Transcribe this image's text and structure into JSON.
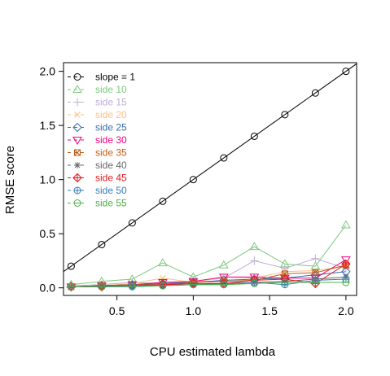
{
  "chart_data": {
    "type": "line",
    "xlabel": "CPU estimated lambda",
    "ylabel": "RMSE score",
    "xlim": [
      0.15,
      2.07
    ],
    "ylim": [
      -0.07,
      2.08
    ],
    "xticks": [
      "0.5",
      "1.0",
      "1.5",
      "2.0"
    ],
    "xtick_values": [
      0.5,
      1.0,
      1.5,
      2.0
    ],
    "yticks": [
      "0.0",
      "0.5",
      "1.0",
      "1.5",
      "2.0"
    ],
    "ytick_values": [
      0.0,
      0.5,
      1.0,
      1.5,
      2.0
    ],
    "grid": false,
    "legend_position": "top-left",
    "x": [
      0.2,
      0.4,
      0.6,
      0.8,
      1.0,
      1.2,
      1.4,
      1.6,
      1.8,
      2.0
    ],
    "series": [
      {
        "name": "slope = 1",
        "color": "#000000",
        "marker": "circle",
        "line": "fullspan",
        "values": [
          0.2,
          0.4,
          0.6,
          0.8,
          1.0,
          1.2,
          1.4,
          1.6,
          1.8,
          2.0
        ]
      },
      {
        "name": "side 10",
        "color": "#7fc97f",
        "marker": "triangle-up",
        "values": [
          0.03,
          0.06,
          0.08,
          0.23,
          0.1,
          0.21,
          0.38,
          0.22,
          0.2,
          0.58
        ]
      },
      {
        "name": "side 15",
        "color": "#beaed4",
        "marker": "plus",
        "values": [
          0.02,
          0.03,
          0.05,
          0.04,
          0.06,
          0.09,
          0.25,
          0.18,
          0.27,
          0.18
        ]
      },
      {
        "name": "side 20",
        "color": "#fdc086",
        "marker": "cross",
        "values": [
          0.01,
          0.02,
          0.04,
          0.09,
          0.05,
          0.1,
          0.09,
          0.15,
          0.16,
          0.2
        ]
      },
      {
        "name": "side 25",
        "color": "#386cb0",
        "marker": "diamond",
        "values": [
          0.01,
          0.02,
          0.03,
          0.04,
          0.05,
          0.07,
          0.08,
          0.09,
          0.12,
          0.15
        ]
      },
      {
        "name": "side 30",
        "color": "#f0027f",
        "marker": "triangle-down",
        "values": [
          0.01,
          0.02,
          0.03,
          0.05,
          0.06,
          0.1,
          0.1,
          0.09,
          0.09,
          0.26
        ]
      },
      {
        "name": "side 35",
        "color": "#bf5b17",
        "marker": "square-x",
        "values": [
          0.01,
          0.02,
          0.03,
          0.03,
          0.05,
          0.06,
          0.07,
          0.13,
          0.14,
          0.21
        ]
      },
      {
        "name": "side 40",
        "color": "#666666",
        "marker": "asterisk",
        "values": [
          0.01,
          0.02,
          0.02,
          0.03,
          0.03,
          0.04,
          0.05,
          0.06,
          0.08,
          0.1
        ]
      },
      {
        "name": "side 45",
        "color": "#e41a1c",
        "marker": "diamond-plus",
        "values": [
          0.01,
          0.01,
          0.02,
          0.03,
          0.04,
          0.04,
          0.07,
          0.08,
          0.04,
          0.22
        ]
      },
      {
        "name": "side 50",
        "color": "#377eb8",
        "marker": "circle-plus",
        "values": [
          0.01,
          0.01,
          0.02,
          0.02,
          0.03,
          0.03,
          0.05,
          0.03,
          0.07,
          0.08
        ]
      },
      {
        "name": "side 55",
        "color": "#4daf4a",
        "marker": "circle-minus",
        "values": [
          0.01,
          0.01,
          0.01,
          0.02,
          0.03,
          0.03,
          0.04,
          0.05,
          0.05,
          0.05
        ]
      }
    ]
  }
}
